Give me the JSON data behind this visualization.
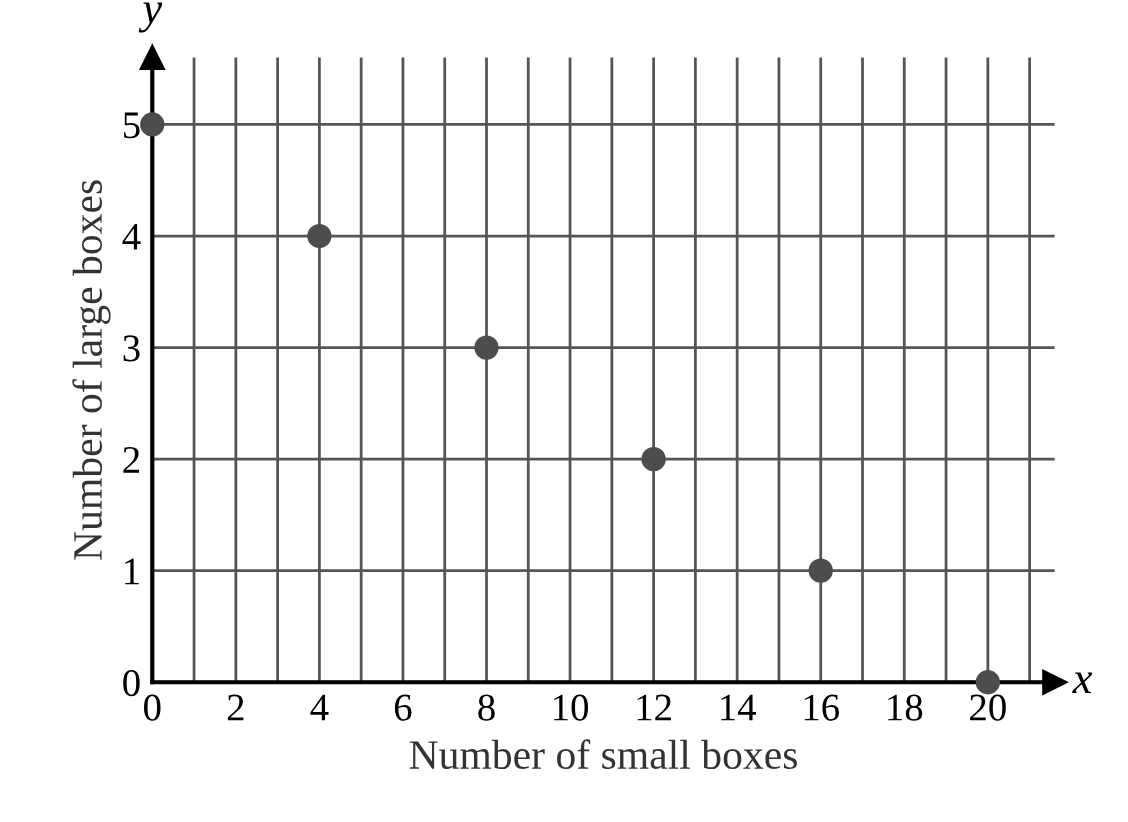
{
  "chart_data": {
    "type": "scatter",
    "xlabel": "Number of small boxes",
    "ylabel": "Number of large boxes",
    "annotations": [
      "x",
      "y"
    ],
    "x": [
      0,
      4,
      8,
      12,
      16,
      20
    ],
    "values": [
      5,
      4,
      3,
      2,
      1,
      0
    ],
    "color": "#4d4d4d",
    "marker": "circle",
    "xlim": [
      0,
      21.6
    ],
    "ylim": [
      0,
      5.6
    ],
    "xticks": [
      0,
      {
        "value": 1,
        "label": null
      },
      2,
      {
        "value": 3,
        "label": null
      },
      4,
      {
        "value": 5,
        "label": null
      },
      6,
      {
        "value": 7,
        "label": null
      },
      8,
      {
        "value": 9,
        "label": null
      },
      10,
      {
        "value": 11,
        "label": null
      },
      12,
      {
        "value": 13,
        "label": null
      },
      14,
      {
        "value": 15,
        "label": null
      },
      16,
      {
        "value": 17,
        "label": null
      },
      18,
      {
        "value": 19,
        "label": null
      },
      20,
      {
        "value": 21,
        "label": null
      }
    ],
    "yticks": [
      0,
      1,
      2,
      3,
      4,
      5
    ],
    "grid": true
  }
}
